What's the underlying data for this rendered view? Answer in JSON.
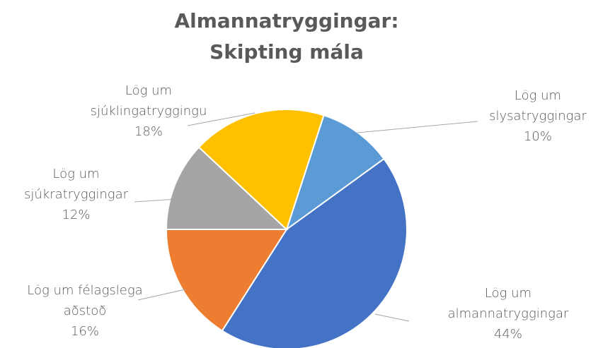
{
  "chart_data": {
    "type": "pie",
    "title": "Almannatryggingar: Skipting mála",
    "categories": [
      "Lög um slysatryggingar",
      "Lög um almannatryggingar",
      "Lög um félagslega aðstoð",
      "Lög um sjúkratryggingar",
      "Lög um sjúklingatryggingu"
    ],
    "values": [
      10,
      44,
      16,
      12,
      18
    ],
    "value_labels": [
      "10%",
      "44%",
      "16%",
      "12%",
      "18%"
    ],
    "colors": [
      "#5b9bd5",
      "#4472c4",
      "#ed7d31",
      "#a5a5a5",
      "#ffc000"
    ]
  }
}
